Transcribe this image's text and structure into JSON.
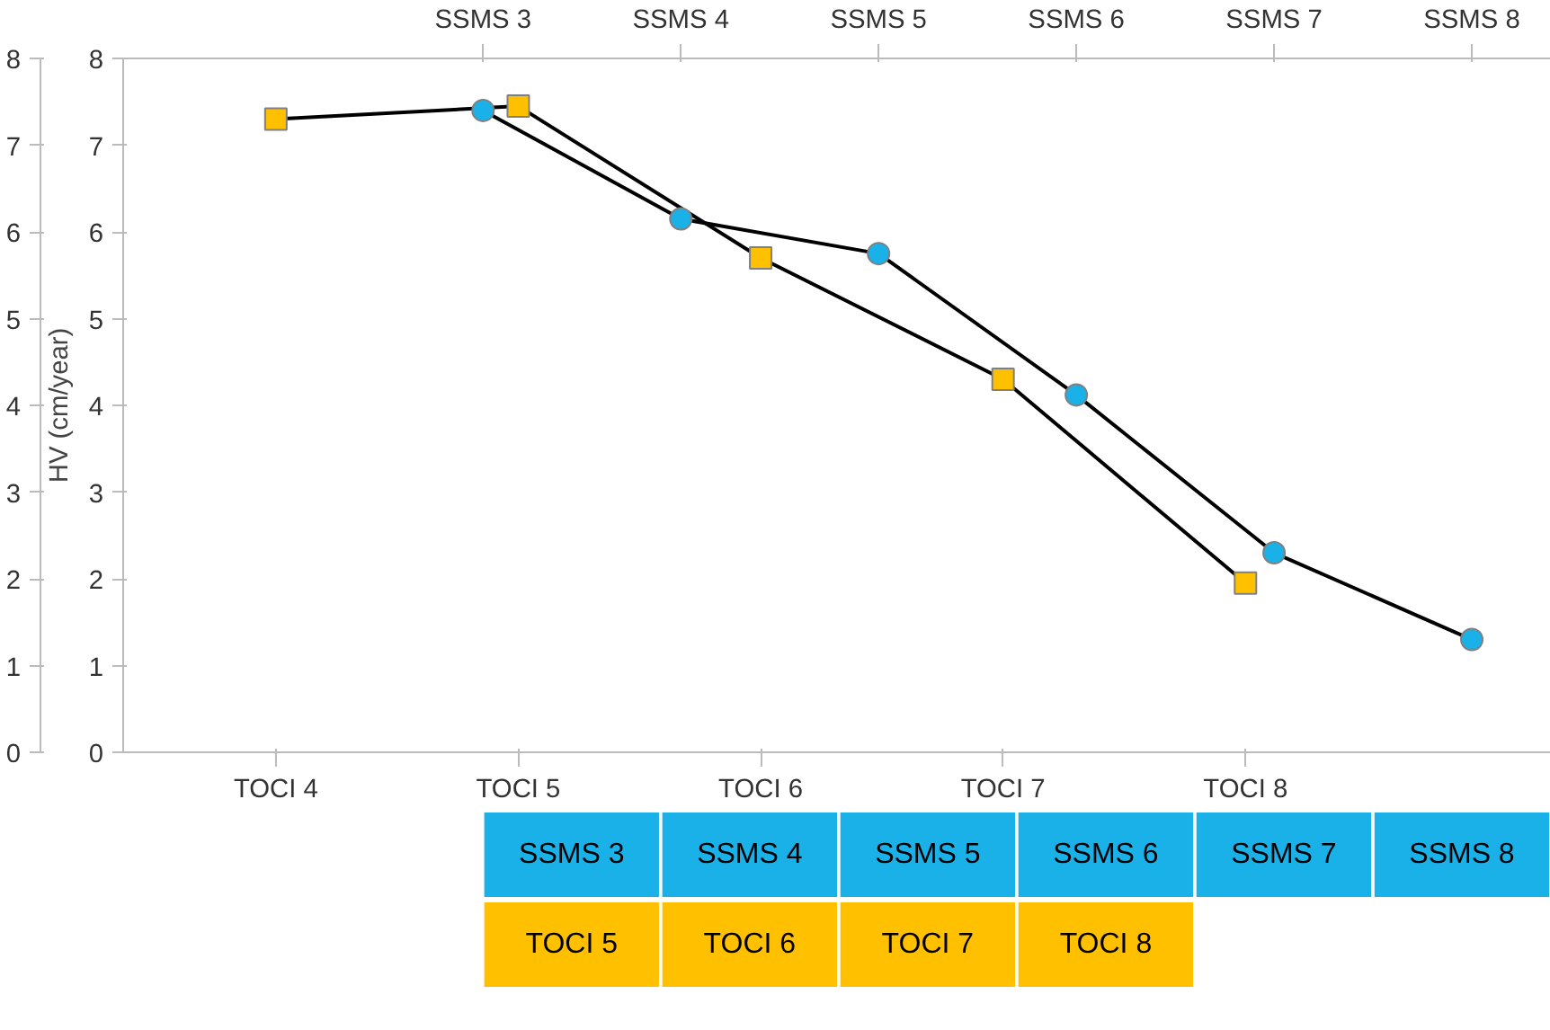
{
  "chart_data": [
    {
      "type": "line",
      "ylabel": "HV (cm/year)",
      "categories": [
        "TOCI 4",
        "TOCI 5",
        "TOCI 6",
        "TOCI 7",
        "TOCI 8"
      ],
      "ylim": [
        0,
        8
      ],
      "yticks": [
        0,
        1,
        2,
        3,
        4,
        5,
        6,
        7,
        8
      ],
      "grid": false,
      "marker": "square",
      "series": [
        {
          "color": "#ffc000",
          "values": [
            7.3,
            7.45,
            5.7,
            4.3,
            1.95
          ]
        }
      ],
      "annotations": [
        "TOCI 5",
        "TOCI 6",
        "TOCI 7",
        "TOCI 8"
      ]
    },
    {
      "type": "line",
      "categories": [
        "SSMS 3",
        "SSMS 4",
        "SSMS 5",
        "SSMS 6",
        "SSMS 7",
        "SSMS 8"
      ],
      "ylim": [
        0,
        8
      ],
      "yticks": [
        0,
        1,
        2,
        3,
        4,
        5,
        6,
        7,
        8
      ],
      "grid": false,
      "marker": "circle",
      "series": [
        {
          "color": "#1ab0e8",
          "values": [
            7.4,
            6.15,
            5.75,
            4.12,
            2.3,
            1.3
          ]
        }
      ],
      "annotations": [
        "SSMS 3",
        "SSMS 4",
        "SSMS 5",
        "SSMS 6",
        "SSMS 7",
        "SSMS 8"
      ]
    }
  ]
}
